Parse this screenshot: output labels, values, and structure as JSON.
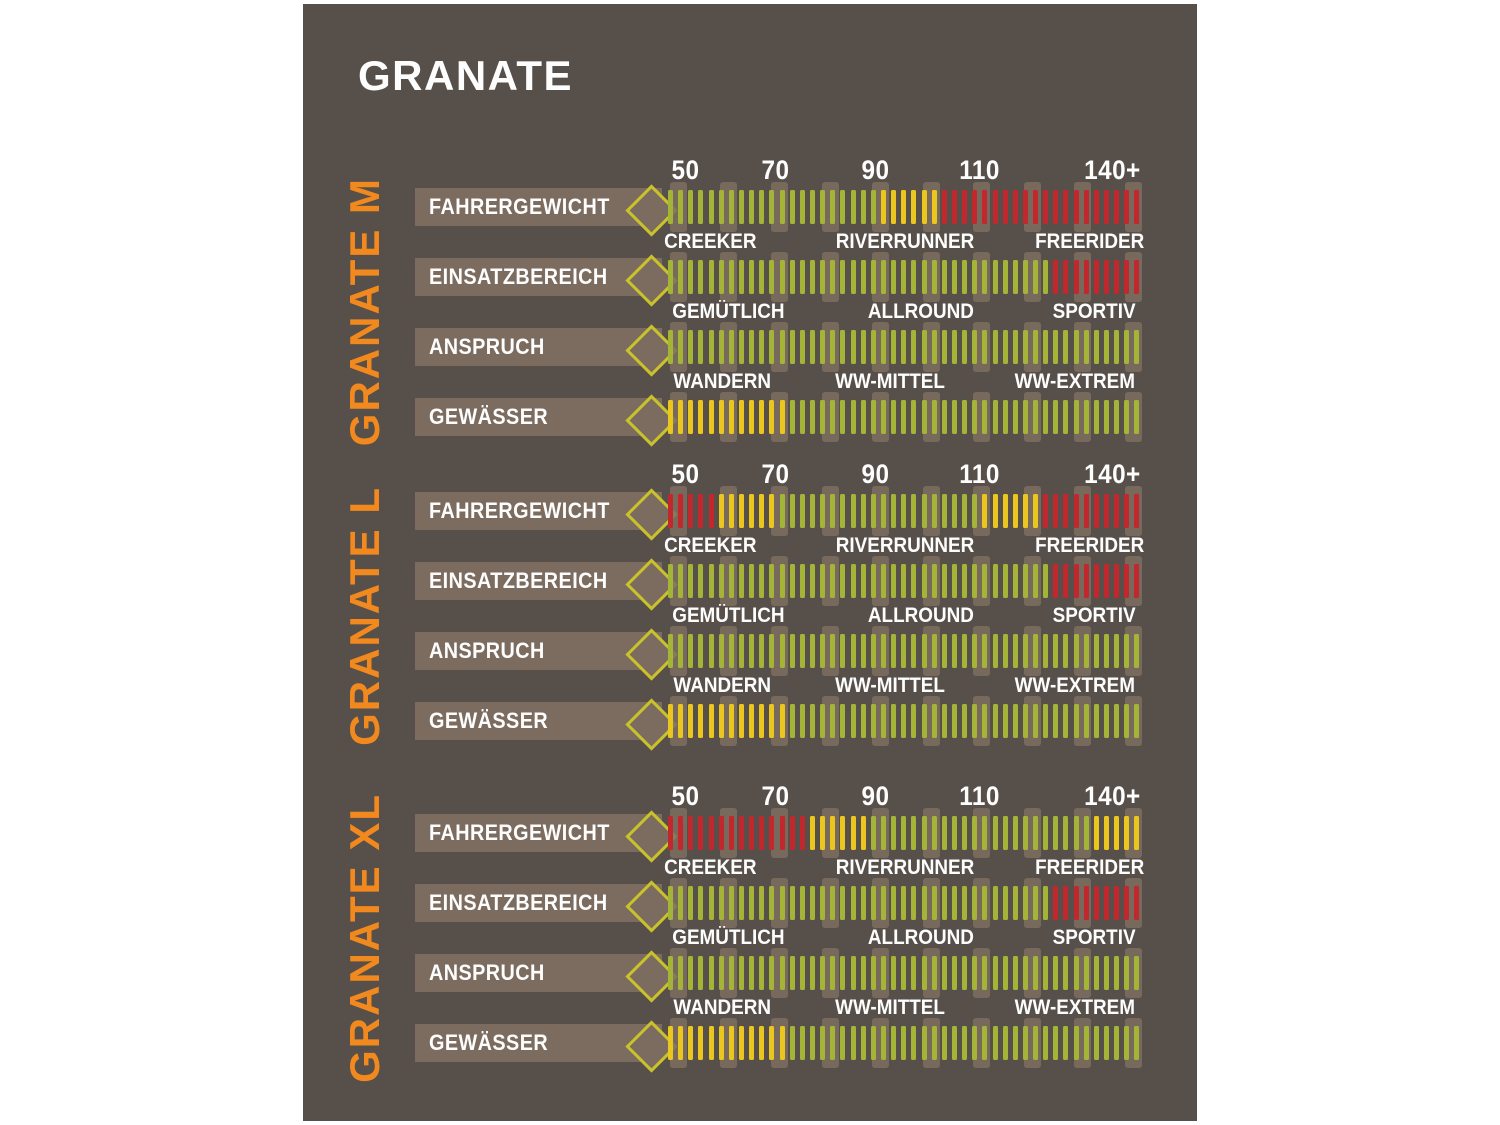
{
  "title": "GRANATE",
  "colors": {
    "page_background": "#ffffff",
    "panel_background": "#57504a",
    "label_band": "#7c6c60",
    "scale_post": "#7d6e60",
    "section_label_orange": "#f1891e",
    "tick_green": "#a3b437",
    "tick_yellow": "#eac61e",
    "tick_red": "#c1272d",
    "diamond_outline": "#c9c22b",
    "text_white": "#fdfdfd"
  },
  "chart_data": {
    "type": "bar",
    "variant": "tick-rating-bars",
    "ticks_per_bar": 47,
    "rating_colors_meaning": [
      "green",
      "yellow",
      "red"
    ],
    "headers": {
      "scale": [
        {
          "text": "50",
          "pos": 0.038
        },
        {
          "text": "70",
          "pos": 0.227
        },
        {
          "text": "90",
          "pos": 0.439
        },
        {
          "text": "110",
          "pos": 0.661
        },
        {
          "text": "140+",
          "pos": 0.941
        }
      ],
      "einsatzbereich": [
        {
          "text": "CREEKER",
          "pos": 0.089
        },
        {
          "text": "RIVERRUNNER",
          "pos": 0.502
        },
        {
          "text": "FREERIDER",
          "pos": 0.894
        }
      ],
      "anspruch": [
        {
          "text": "GEMÜTLICH",
          "pos": 0.127
        },
        {
          "text": "ALLROUND",
          "pos": 0.536
        },
        {
          "text": "SPORTIV",
          "pos": 0.902
        }
      ],
      "gewaesser": [
        {
          "text": "WANDERN",
          "pos": 0.115
        },
        {
          "text": "WW-MITTEL",
          "pos": 0.47
        },
        {
          "text": "WW-EXTREM",
          "pos": 0.862
        }
      ]
    },
    "sections": [
      {
        "name": "GRANATE M",
        "rows": [
          {
            "label": "FAHRERGEWICHT",
            "header": "scale",
            "segments": [
              [
                "green",
                21
              ],
              [
                "yellow",
                6
              ],
              [
                "red",
                20
              ]
            ]
          },
          {
            "label": "EINSATZBEREICH",
            "header": "einsatzbereich",
            "segments": [
              [
                "green",
                38
              ],
              [
                "red",
                9
              ]
            ]
          },
          {
            "label": "ANSPRUCH",
            "header": "anspruch",
            "segments": [
              [
                "green",
                47
              ]
            ]
          },
          {
            "label": "GEWÄSSER",
            "header": "gewaesser",
            "segments": [
              [
                "yellow",
                12
              ],
              [
                "green",
                35
              ]
            ]
          }
        ]
      },
      {
        "name": "GRANATE L",
        "rows": [
          {
            "label": "FAHRERGEWICHT",
            "header": "scale",
            "segments": [
              [
                "red",
                5
              ],
              [
                "yellow",
                6
              ],
              [
                "green",
                20
              ],
              [
                "yellow",
                6
              ],
              [
                "red",
                10
              ]
            ]
          },
          {
            "label": "EINSATZBEREICH",
            "header": "einsatzbereich",
            "segments": [
              [
                "green",
                38
              ],
              [
                "red",
                9
              ]
            ]
          },
          {
            "label": "ANSPRUCH",
            "header": "anspruch",
            "segments": [
              [
                "green",
                47
              ]
            ]
          },
          {
            "label": "GEWÄSSER",
            "header": "gewaesser",
            "segments": [
              [
                "yellow",
                12
              ],
              [
                "green",
                35
              ]
            ]
          }
        ]
      },
      {
        "name": "GRANATE XL",
        "rows": [
          {
            "label": "FAHRERGEWICHT",
            "header": "scale",
            "segments": [
              [
                "red",
                14
              ],
              [
                "yellow",
                6
              ],
              [
                "green",
                22
              ],
              [
                "yellow",
                5
              ]
            ]
          },
          {
            "label": "EINSATZBEREICH",
            "header": "einsatzbereich",
            "segments": [
              [
                "green",
                38
              ],
              [
                "red",
                9
              ]
            ]
          },
          {
            "label": "ANSPRUCH",
            "header": "anspruch",
            "segments": [
              [
                "green",
                47
              ]
            ]
          },
          {
            "label": "GEWÄSSER",
            "header": "gewaesser",
            "segments": [
              [
                "yellow",
                12
              ],
              [
                "green",
                35
              ]
            ]
          }
        ]
      }
    ]
  }
}
